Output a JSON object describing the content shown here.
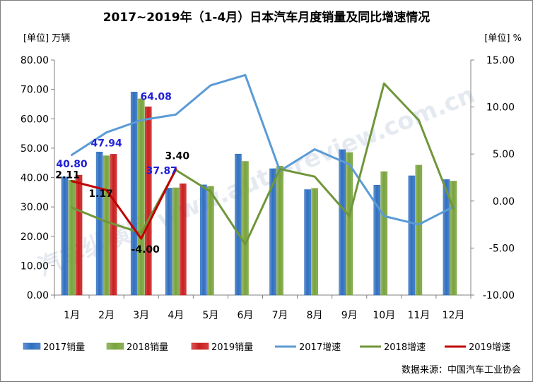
{
  "chart_data": {
    "type": "bar",
    "title": "2017~2019年（1-4月）日本汽车月度销量及同比增速情况",
    "left_unit": "[单位] 万辆",
    "right_unit": "[单位] %",
    "source": "数据来源：中国汽车工业协会",
    "watermark": "汽车纵横网 www.auto-review.com.cn",
    "categories": [
      "1月",
      "2月",
      "3月",
      "4月",
      "5月",
      "6月",
      "7月",
      "8月",
      "9月",
      "10月",
      "11月",
      "12月"
    ],
    "y_left": {
      "min": 0,
      "max": 80,
      "step": 10,
      "ticks": [
        "0.00",
        "10.00",
        "20.00",
        "30.00",
        "40.00",
        "50.00",
        "60.00",
        "70.00",
        "80.00"
      ]
    },
    "y_right": {
      "min": -10,
      "max": 15,
      "step": 5,
      "ticks": [
        "-10.00",
        "-5.00",
        "0.00",
        "5.00",
        "10.00",
        "15.00"
      ]
    },
    "bar_series": [
      {
        "name": "2017销量",
        "color": "#2f6fc0",
        "values": [
          40.2,
          48.7,
          69.1,
          36.4,
          37.5,
          48.0,
          43.0,
          35.9,
          49.5,
          37.4,
          40.6,
          39.3
        ]
      },
      {
        "name": "2018销量",
        "color": "#79a33c",
        "values": [
          39.1,
          47.4,
          66.8,
          36.5,
          37.0,
          45.5,
          43.9,
          36.3,
          48.5,
          42.0,
          44.2,
          38.8
        ]
      },
      {
        "name": "2019销量",
        "color": "#c91e1e",
        "values": [
          40.8,
          47.94,
          64.08,
          37.87
        ]
      }
    ],
    "line_series": [
      {
        "name": "2017增速",
        "color": "#5b9bd5",
        "values": [
          4.9,
          7.3,
          8.6,
          9.2,
          12.3,
          13.4,
          3.2,
          5.5,
          3.9,
          -1.6,
          -2.5,
          -0.6
        ]
      },
      {
        "name": "2018增速",
        "color": "#70963a",
        "values": [
          -0.7,
          -2.2,
          -3.4,
          3.3,
          1.0,
          -4.6,
          3.4,
          2.6,
          -1.6,
          12.5,
          8.6,
          -0.8
        ]
      },
      {
        "name": "2019增速",
        "color": "#c00000",
        "values": [
          2.11,
          1.17,
          -4.0,
          3.4
        ]
      }
    ],
    "data_labels": {
      "sales_2019": [
        "40.80",
        "47.94",
        "64.08",
        "37.87"
      ],
      "growth_2019": [
        "2.11",
        "1.17",
        "-4.00",
        "3.40"
      ]
    },
    "legend_position": "bottom",
    "grid": false
  }
}
